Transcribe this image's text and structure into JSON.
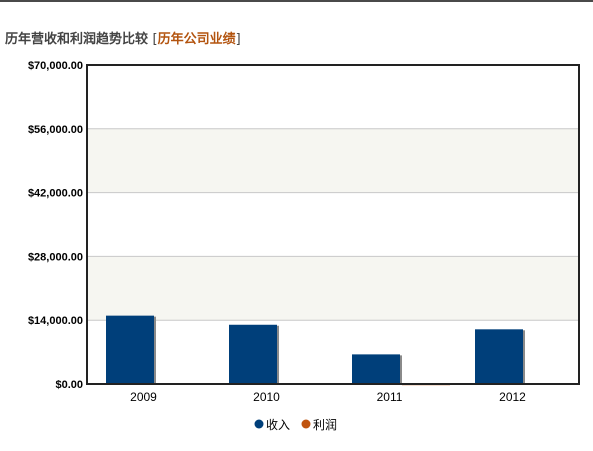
{
  "header": {
    "title": "历年营收和利润趋势比较",
    "bracket_open": "[",
    "link": "历年公司业绩",
    "bracket_close": "]"
  },
  "colors": {
    "income": "#003f7a",
    "profit": "#c0540f",
    "band": "#f6f6f1",
    "grid": "#c8c8c8",
    "title": "#444444",
    "link": "#b3540f"
  },
  "chart_data": {
    "type": "bar",
    "title": "",
    "xlabel": "",
    "ylabel": "",
    "categories": [
      "2009",
      "2010",
      "2011",
      "2012"
    ],
    "series": [
      {
        "name": "收入",
        "values": [
          15000,
          13000,
          6500,
          12000
        ]
      },
      {
        "name": "利润",
        "values": [
          150,
          130,
          65,
          120
        ]
      }
    ],
    "ylim": [
      0,
      70000
    ],
    "yticks": [
      0,
      14000,
      28000,
      42000,
      56000,
      70000
    ],
    "ytick_labels": [
      "$0.00",
      "$14,000.00",
      "$28,000.00",
      "$42,000.00",
      "$56,000.00",
      "$70,000.00"
    ],
    "grid": true,
    "legend_position": "bottom-center"
  }
}
